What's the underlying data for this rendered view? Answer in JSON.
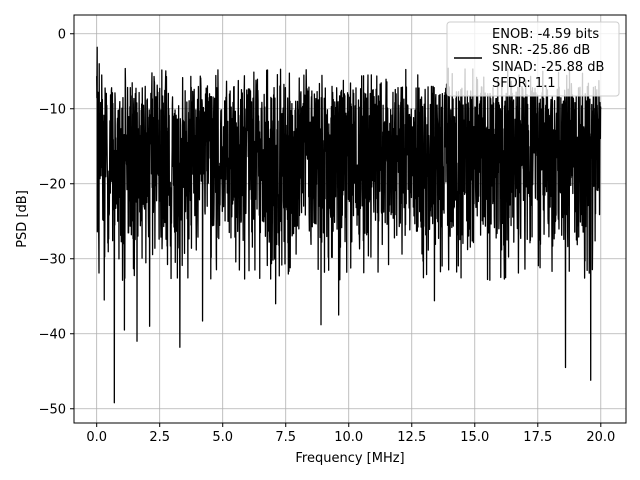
{
  "chart_data": {
    "type": "line",
    "title": "",
    "xlabel": "Frequency [MHz]",
    "ylabel": "PSD [dB]",
    "xlim": [
      -0.9,
      21.0
    ],
    "ylim": [
      -51.9,
      2.5
    ],
    "xticks": [
      0.0,
      2.5,
      5.0,
      7.5,
      10.0,
      12.5,
      15.0,
      17.5,
      20.0
    ],
    "xtick_labels": [
      "0.0",
      "2.5",
      "5.0",
      "7.5",
      "10.0",
      "12.5",
      "15.0",
      "17.5",
      "20.0"
    ],
    "yticks": [
      0,
      -10,
      -20,
      -30,
      -40,
      -50
    ],
    "ytick_labels": [
      "0",
      "−10",
      "−20",
      "−30",
      "−40",
      "−50"
    ],
    "grid": true,
    "legend": {
      "placement": "top-right",
      "entries": [
        "ENOB: -4.59 bits",
        "SNR: -25.86 dB",
        "SINAD: -25.88 dB",
        "SFDR: 1.1"
      ]
    },
    "series": [
      {
        "color": "#000000",
        "description_ranges": {
          "x_range": [
            0.0,
            20.0
          ],
          "upper_envelope_approx": -7,
          "lower_envelope_approx": -28
        },
        "peaks": [
          {
            "x": 0.02,
            "y": -1.8
          },
          {
            "x": 0.1,
            "y": -4.0
          },
          {
            "x": 0.2,
            "y": -5.5
          }
        ],
        "deep_nulls": [
          {
            "x": 0.3,
            "y": -35.5
          },
          {
            "x": 0.7,
            "y": -49.2
          },
          {
            "x": 1.1,
            "y": -39.5
          },
          {
            "x": 1.6,
            "y": -41.0
          },
          {
            "x": 2.1,
            "y": -39.0
          },
          {
            "x": 3.3,
            "y": -41.8
          },
          {
            "x": 4.2,
            "y": -38.3
          },
          {
            "x": 7.1,
            "y": -36.0
          },
          {
            "x": 8.9,
            "y": -38.8
          },
          {
            "x": 9.6,
            "y": -37.5
          },
          {
            "x": 13.4,
            "y": -35.6
          },
          {
            "x": 18.6,
            "y": -44.5
          },
          {
            "x": 19.6,
            "y": -46.2
          }
        ]
      }
    ]
  }
}
